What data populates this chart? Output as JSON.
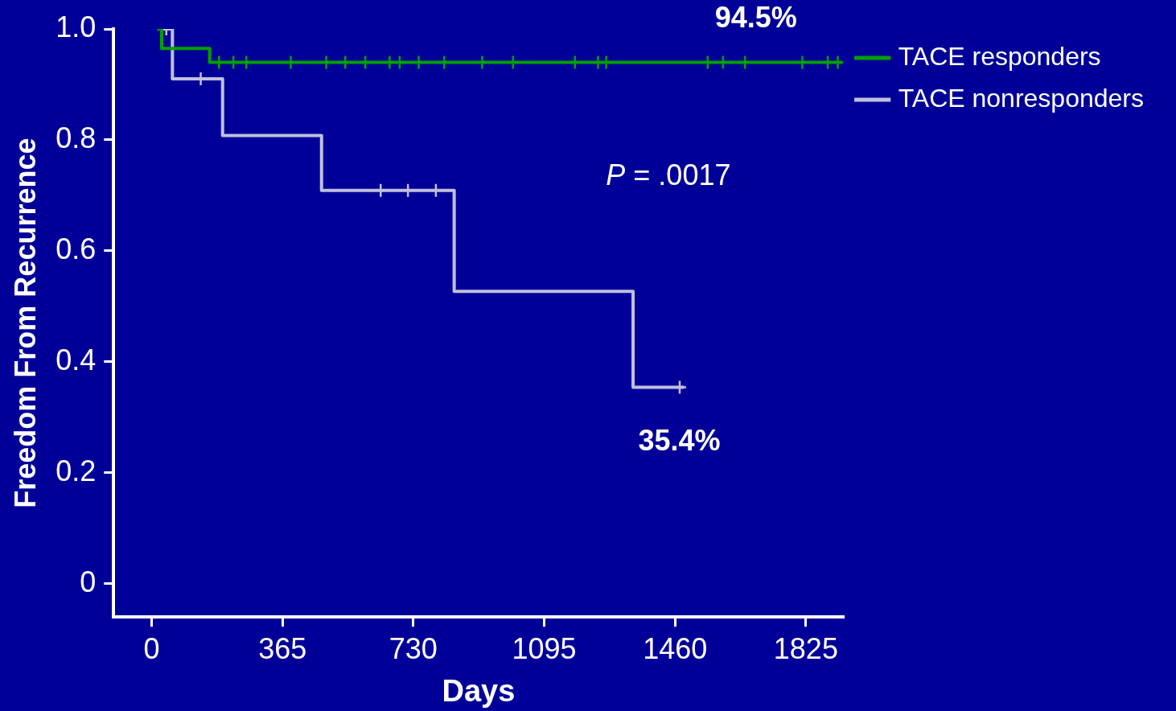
{
  "chart_data": {
    "type": "step",
    "xlabel": "Days",
    "ylabel": "Freedom From Recurrence",
    "xlim": [
      -106,
      1930
    ],
    "xticks": [
      0,
      365,
      730,
      1095,
      1460,
      1825
    ],
    "ylim": [
      -0.06,
      1.0
    ],
    "yticks": [
      {
        "value": 0,
        "label": "0"
      },
      {
        "value": 0.2,
        "label": "0.2"
      },
      {
        "value": 0.4,
        "label": "0.4"
      },
      {
        "value": 0.6,
        "label": "0.6"
      },
      {
        "value": 0.8,
        "label": "0.8"
      },
      {
        "value": 1.0,
        "label": "1.0"
      }
    ],
    "grid": false,
    "legend": "right",
    "marker": "none",
    "line_style": "solid",
    "series": [
      {
        "name": "TACE responders",
        "color": "#00a000",
        "x": [
          15,
          28,
          162,
          1926
        ],
        "values": [
          1.0,
          0.965,
          0.94,
          0.94
        ]
      },
      {
        "name": "TACE nonresponders",
        "color": "#c0c0dc",
        "x": [
          20,
          58,
          198,
          474,
          844,
          1343,
          1485
        ],
        "values": [
          1.0,
          0.91,
          0.808,
          0.709,
          0.527,
          0.354,
          0.354
        ]
      },
      {
        "type": "scatter",
        "marker": "cross",
        "color": "#00a000",
        "x": [
          188,
          228,
          264,
          388,
          487,
          540,
          596,
          664,
          692,
          745,
          816,
          922,
          1008,
          1181,
          1245,
          1268,
          1551,
          1594,
          1655,
          1815,
          1886,
          1914
        ],
        "values": [
          0.94,
          0.94,
          0.94,
          0.94,
          0.94,
          0.94,
          0.94,
          0.94,
          0.94,
          0.94,
          0.94,
          0.94,
          0.94,
          0.94,
          0.94,
          0.94,
          0.94,
          0.94,
          0.94,
          0.94,
          0.94,
          0.94
        ]
      },
      {
        "type": "scatter",
        "marker": "cross",
        "color": "#c0c0dc",
        "x": [
          41,
          137,
          639,
          715,
          793,
          1473
        ],
        "values": [
          1.0,
          0.91,
          0.709,
          0.709,
          0.709,
          0.354
        ]
      }
    ],
    "annotations": [
      "94.5%",
      "35.4%",
      "P = .0017"
    ]
  }
}
